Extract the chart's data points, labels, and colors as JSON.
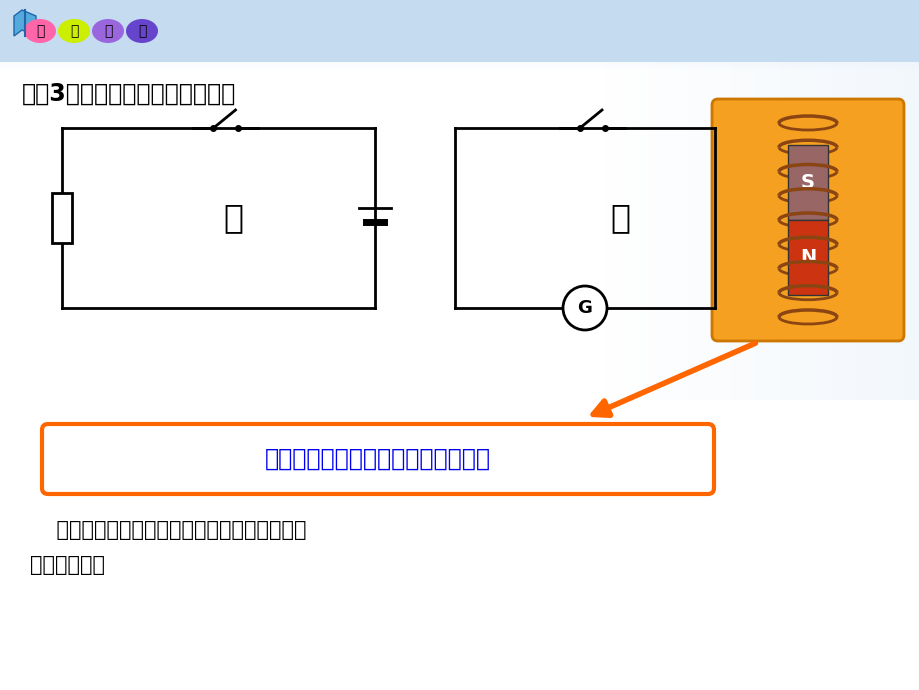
{
  "bg_top_color": "#b8d4f0",
  "bg_main_color": "#ffffff",
  "title_text": "问题3：比较甲、乙两电路的异同",
  "label_jia": "甲",
  "label_yi": "乙",
  "box_text": "产生电动势的那部分导体相当于电源",
  "body_line1": "    既然闭合电路中有感应电流，这个电路中就一",
  "body_line2": "定有电动势。",
  "box_text_color": "#0000ee",
  "box_border_color": "#ff6600",
  "body_text_color": "#000000",
  "title_color": "#000000",
  "badge_pink": "#ff66aa",
  "badge_yellow": "#ccee00",
  "badge_purple": "#9966dd",
  "badge_blue": "#6644cc",
  "coil_color": "#8B4513",
  "magnet_s_color": "#aa4444",
  "magnet_n_color": "#cc3311",
  "orange_bg": "#f5a020",
  "orange_border": "#cc7700"
}
